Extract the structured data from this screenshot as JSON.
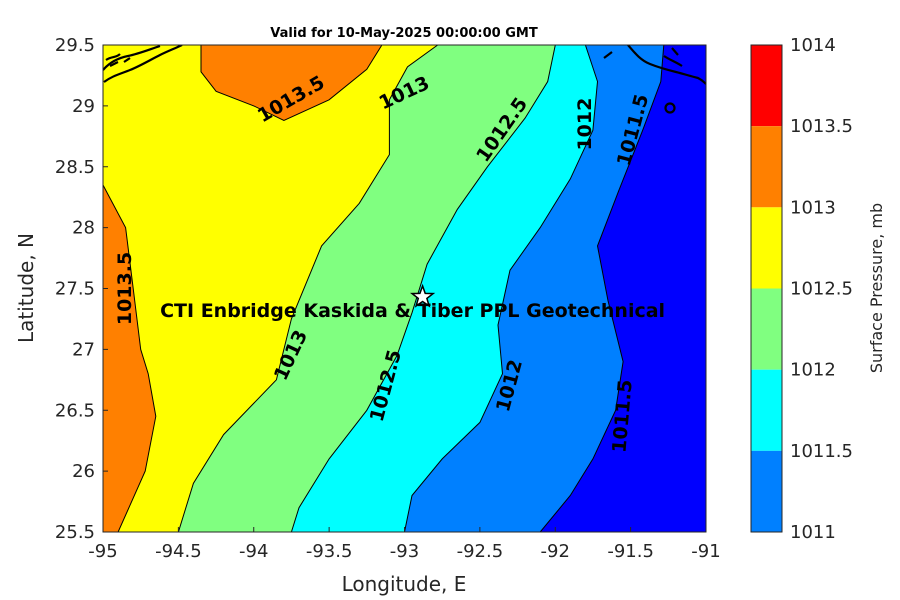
{
  "title": "Valid for 10-May-2025 00:00:00 GMT",
  "xlabel": "Longitude, E",
  "ylabel": "Latitude, N",
  "colorbar": {
    "label": "Surface Pressure, mb",
    "ticks": [
      "1014",
      "1013.5",
      "1013",
      "1012.5",
      "1012",
      "1011.5",
      "1011"
    ],
    "colors": [
      "#ff0000",
      "#ff8000",
      "#ffff00",
      "#80ff80",
      "#00ffff",
      "#0080ff",
      "#0000ff"
    ]
  },
  "x_ticks": [
    "-95",
    "-94.5",
    "-94",
    "-93.5",
    "-93",
    "-92.5",
    "-92",
    "-91.5",
    "-91"
  ],
  "y_ticks": [
    "29.5",
    "29",
    "28.5",
    "28",
    "27.5",
    "27",
    "26.5",
    "26",
    "25.5"
  ],
  "site": {
    "name": "CTI Enbridge  Kaskida & Tiber PPL Geotechnical",
    "lon": -92.88,
    "lat": 27.43
  },
  "contour_labels": [
    {
      "text": "1013.5",
      "lon": -93.75,
      "lat": 29.05,
      "angle": -30
    },
    {
      "text": "1013",
      "lon": -93.0,
      "lat": 29.1,
      "angle": -25
    },
    {
      "text": "1012.5",
      "lon": -92.35,
      "lat": 28.8,
      "angle": -55
    },
    {
      "text": "1012",
      "lon": -91.8,
      "lat": 28.85,
      "angle": -90
    },
    {
      "text": "1011.5",
      "lon": -91.48,
      "lat": 28.8,
      "angle": -75
    },
    {
      "text": "1013.5",
      "lon": -94.85,
      "lat": 27.5,
      "angle": -90
    },
    {
      "text": "1013",
      "lon": -93.75,
      "lat": 26.95,
      "angle": -65
    },
    {
      "text": "1012.5",
      "lon": -93.12,
      "lat": 26.7,
      "angle": -75
    },
    {
      "text": "1012",
      "lon": -92.3,
      "lat": 26.7,
      "angle": -75
    },
    {
      "text": "1011.5",
      "lon": -91.55,
      "lat": 26.45,
      "angle": -85
    }
  ],
  "chart_data": {
    "type": "heatmap",
    "title": "Valid for 10-May-2025 00:00:00 GMT",
    "xlabel": "Longitude, E",
    "ylabel": "Latitude, N",
    "xlim": [
      -95,
      -91
    ],
    "ylim": [
      25.5,
      29.5
    ],
    "colorbar_range": [
      1011,
      1014
    ],
    "contour_levels": [
      1011.5,
      1012,
      1012.5,
      1013,
      1013.5
    ],
    "isobars": [
      {
        "level": 1013.5,
        "segment": "west",
        "points": [
          [
            -95.0,
            28.35
          ],
          [
            -94.85,
            28.0
          ],
          [
            -94.8,
            27.5
          ],
          [
            -94.75,
            27.0
          ],
          [
            -94.7,
            26.8
          ],
          [
            -94.65,
            26.45
          ],
          [
            -94.72,
            26.0
          ],
          [
            -94.9,
            25.5
          ]
        ]
      },
      {
        "level": 1013.5,
        "segment": "north",
        "points": [
          [
            -94.35,
            29.5
          ],
          [
            -94.35,
            29.28
          ],
          [
            -94.25,
            29.12
          ],
          [
            -94.0,
            29.0
          ],
          [
            -93.8,
            28.88
          ],
          [
            -93.5,
            29.05
          ],
          [
            -93.25,
            29.3
          ],
          [
            -93.15,
            29.5
          ]
        ]
      },
      {
        "level": 1013,
        "points": [
          [
            -92.78,
            29.5
          ],
          [
            -92.98,
            29.32
          ],
          [
            -93.1,
            29.05
          ],
          [
            -93.1,
            28.6
          ],
          [
            -93.3,
            28.2
          ],
          [
            -93.55,
            27.85
          ],
          [
            -93.75,
            27.25
          ],
          [
            -93.85,
            26.75
          ],
          [
            -94.2,
            26.3
          ],
          [
            -94.4,
            25.9
          ],
          [
            -94.5,
            25.5
          ]
        ]
      },
      {
        "level": 1012.5,
        "points": [
          [
            -92.0,
            29.5
          ],
          [
            -92.05,
            29.2
          ],
          [
            -92.2,
            28.9
          ],
          [
            -92.45,
            28.5
          ],
          [
            -92.65,
            28.15
          ],
          [
            -92.85,
            27.7
          ],
          [
            -92.95,
            27.3
          ],
          [
            -93.05,
            26.95
          ],
          [
            -93.25,
            26.5
          ],
          [
            -93.5,
            26.1
          ],
          [
            -93.7,
            25.7
          ],
          [
            -93.75,
            25.5
          ]
        ]
      },
      {
        "level": 1012,
        "points": [
          [
            -91.8,
            29.5
          ],
          [
            -91.72,
            29.2
          ],
          [
            -91.75,
            28.8
          ],
          [
            -91.9,
            28.4
          ],
          [
            -92.1,
            28.0
          ],
          [
            -92.3,
            27.65
          ],
          [
            -92.38,
            27.2
          ],
          [
            -92.35,
            26.8
          ],
          [
            -92.5,
            26.4
          ],
          [
            -92.75,
            26.1
          ],
          [
            -92.95,
            25.8
          ],
          [
            -93.0,
            25.5
          ]
        ]
      },
      {
        "level": 1011.5,
        "points": [
          [
            -91.28,
            29.5
          ],
          [
            -91.3,
            29.2
          ],
          [
            -91.42,
            28.8
          ],
          [
            -91.58,
            28.3
          ],
          [
            -91.72,
            27.85
          ],
          [
            -91.65,
            27.4
          ],
          [
            -91.55,
            26.9
          ],
          [
            -91.6,
            26.5
          ],
          [
            -91.75,
            26.1
          ],
          [
            -91.9,
            25.8
          ],
          [
            -92.1,
            25.5
          ]
        ]
      }
    ]
  }
}
